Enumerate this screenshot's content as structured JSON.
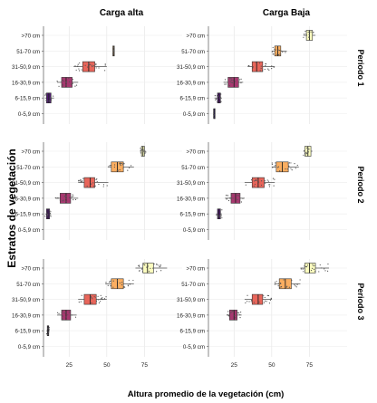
{
  "chart_data": {
    "type": "boxplot",
    "ylabel": "Estratos de vegetación",
    "xlabel": "Altura promedio de la vegetación (cm)",
    "x_ticks": [
      25,
      50,
      75
    ],
    "xlim": [
      8,
      100
    ],
    "columns": [
      "Carga alta",
      "Carga Baja"
    ],
    "rows": [
      "Periodo 1",
      "Periodo 2",
      "Periodo 3"
    ],
    "categories": [
      ">70 cm",
      "51-70 cm",
      "31-50,9 cm",
      "16-30,9 cm",
      "6-15,9 cm",
      "0-5,9 cm"
    ],
    "colors": {
      ">70 cm": "#fcfdbf",
      "51-70 cm": "#fbae61",
      "31-50,9 cm": "#e8655a",
      "16-30,9 cm": "#a6386f",
      "6-15,9 cm": "#4e1a70",
      "0-5,9 cm": "#1c1044"
    },
    "panels": [
      {
        "row": "Periodo 1",
        "column": "Carga alta",
        "boxes": [
          {
            "category": "51-70 cm",
            "min": 54,
            "q1": 54,
            "median": 54.5,
            "q3": 55,
            "max": 55
          },
          {
            "category": "31-50,9 cm",
            "min": 28,
            "q1": 34,
            "median": 38,
            "q3": 42,
            "max": 50
          },
          {
            "category": "16-30,9 cm",
            "min": 17,
            "q1": 20,
            "median": 23,
            "q3": 27,
            "max": 31
          },
          {
            "category": "6-15,9 cm",
            "min": 9,
            "q1": 10,
            "median": 11.5,
            "q3": 13,
            "max": 15
          }
        ]
      },
      {
        "row": "Periodo 1",
        "column": "Carga Baja",
        "boxes": [
          {
            "category": ">70 cm",
            "min": 71,
            "q1": 73,
            "median": 75,
            "q3": 77,
            "max": 79
          },
          {
            "category": "51-70 cm",
            "min": 50,
            "q1": 52,
            "median": 54,
            "q3": 56,
            "max": 60
          },
          {
            "category": "31-50,9 cm",
            "min": 34,
            "q1": 37,
            "median": 40,
            "q3": 44,
            "max": 52
          },
          {
            "category": "16-30,9 cm",
            "min": 18,
            "q1": 21,
            "median": 25,
            "q3": 28,
            "max": 31
          },
          {
            "category": "6-15,9 cm",
            "min": 12,
            "q1": 14,
            "median": 15,
            "q3": 16,
            "max": 17
          },
          {
            "category": "0-5,9 cm",
            "min": 11.5,
            "q1": 11.5,
            "median": 11.5,
            "q3": 11.5,
            "max": 11.5
          }
        ]
      },
      {
        "row": "Periodo 2",
        "column": "Carga alta",
        "boxes": [
          {
            "category": ">70 cm",
            "min": 72,
            "q1": 73,
            "median": 74,
            "q3": 75,
            "max": 76
          },
          {
            "category": "51-70 cm",
            "min": 51,
            "q1": 53,
            "median": 57,
            "q3": 61,
            "max": 68
          },
          {
            "category": "31-50,9 cm",
            "min": 31,
            "q1": 35,
            "median": 39,
            "q3": 42,
            "max": 51
          },
          {
            "category": "16-30,9 cm",
            "min": 16,
            "q1": 19,
            "median": 23,
            "q3": 26,
            "max": 31
          },
          {
            "category": "6-15,9 cm",
            "min": 9,
            "q1": 10,
            "median": 11,
            "q3": 12,
            "max": 13
          }
        ]
      },
      {
        "row": "Periodo 2",
        "column": "Carga Baja",
        "boxes": [
          {
            "category": ">70 cm",
            "min": 71,
            "q1": 72,
            "median": 74,
            "q3": 76,
            "max": 77
          },
          {
            "category": "51-70 cm",
            "min": 50,
            "q1": 53,
            "median": 57,
            "q3": 61,
            "max": 68
          },
          {
            "category": "31-50,9 cm",
            "min": 32,
            "q1": 37,
            "median": 41,
            "q3": 45,
            "max": 52
          },
          {
            "category": "16-30,9 cm",
            "min": 19,
            "q1": 23,
            "median": 26,
            "q3": 29,
            "max": 32
          },
          {
            "category": "6-15,9 cm",
            "min": 13,
            "q1": 14,
            "median": 15,
            "q3": 16,
            "max": 17
          }
        ]
      },
      {
        "row": "Periodo 3",
        "column": "Carga alta",
        "boxes": [
          {
            "category": ">70 cm",
            "min": 69,
            "q1": 74,
            "median": 77,
            "q3": 81,
            "max": 90
          },
          {
            "category": "51-70 cm",
            "min": 49,
            "q1": 53,
            "median": 57,
            "q3": 61,
            "max": 68
          },
          {
            "category": "31-50,9 cm",
            "min": 31,
            "q1": 35,
            "median": 39,
            "q3": 43,
            "max": 50
          },
          {
            "category": "16-30,9 cm",
            "min": 17,
            "q1": 20,
            "median": 23,
            "q3": 26,
            "max": 30
          },
          {
            "category": "6-15,9 cm",
            "min": 10,
            "q1": 10.5,
            "median": 11,
            "q3": 11.5,
            "max": 12
          }
        ]
      },
      {
        "row": "Periodo 3",
        "column": "Carga Baja",
        "boxes": [
          {
            "category": ">70 cm",
            "min": 69,
            "q1": 72,
            "median": 75,
            "q3": 79,
            "max": 88
          },
          {
            "category": "51-70 cm",
            "min": 52,
            "q1": 55,
            "median": 59,
            "q3": 63,
            "max": 69
          },
          {
            "category": "31-50,9 cm",
            "min": 32,
            "q1": 37,
            "median": 41,
            "q3": 44,
            "max": 50
          },
          {
            "category": "16-30,9 cm",
            "min": 20,
            "q1": 22,
            "median": 25,
            "q3": 27,
            "max": 30
          }
        ]
      }
    ]
  }
}
